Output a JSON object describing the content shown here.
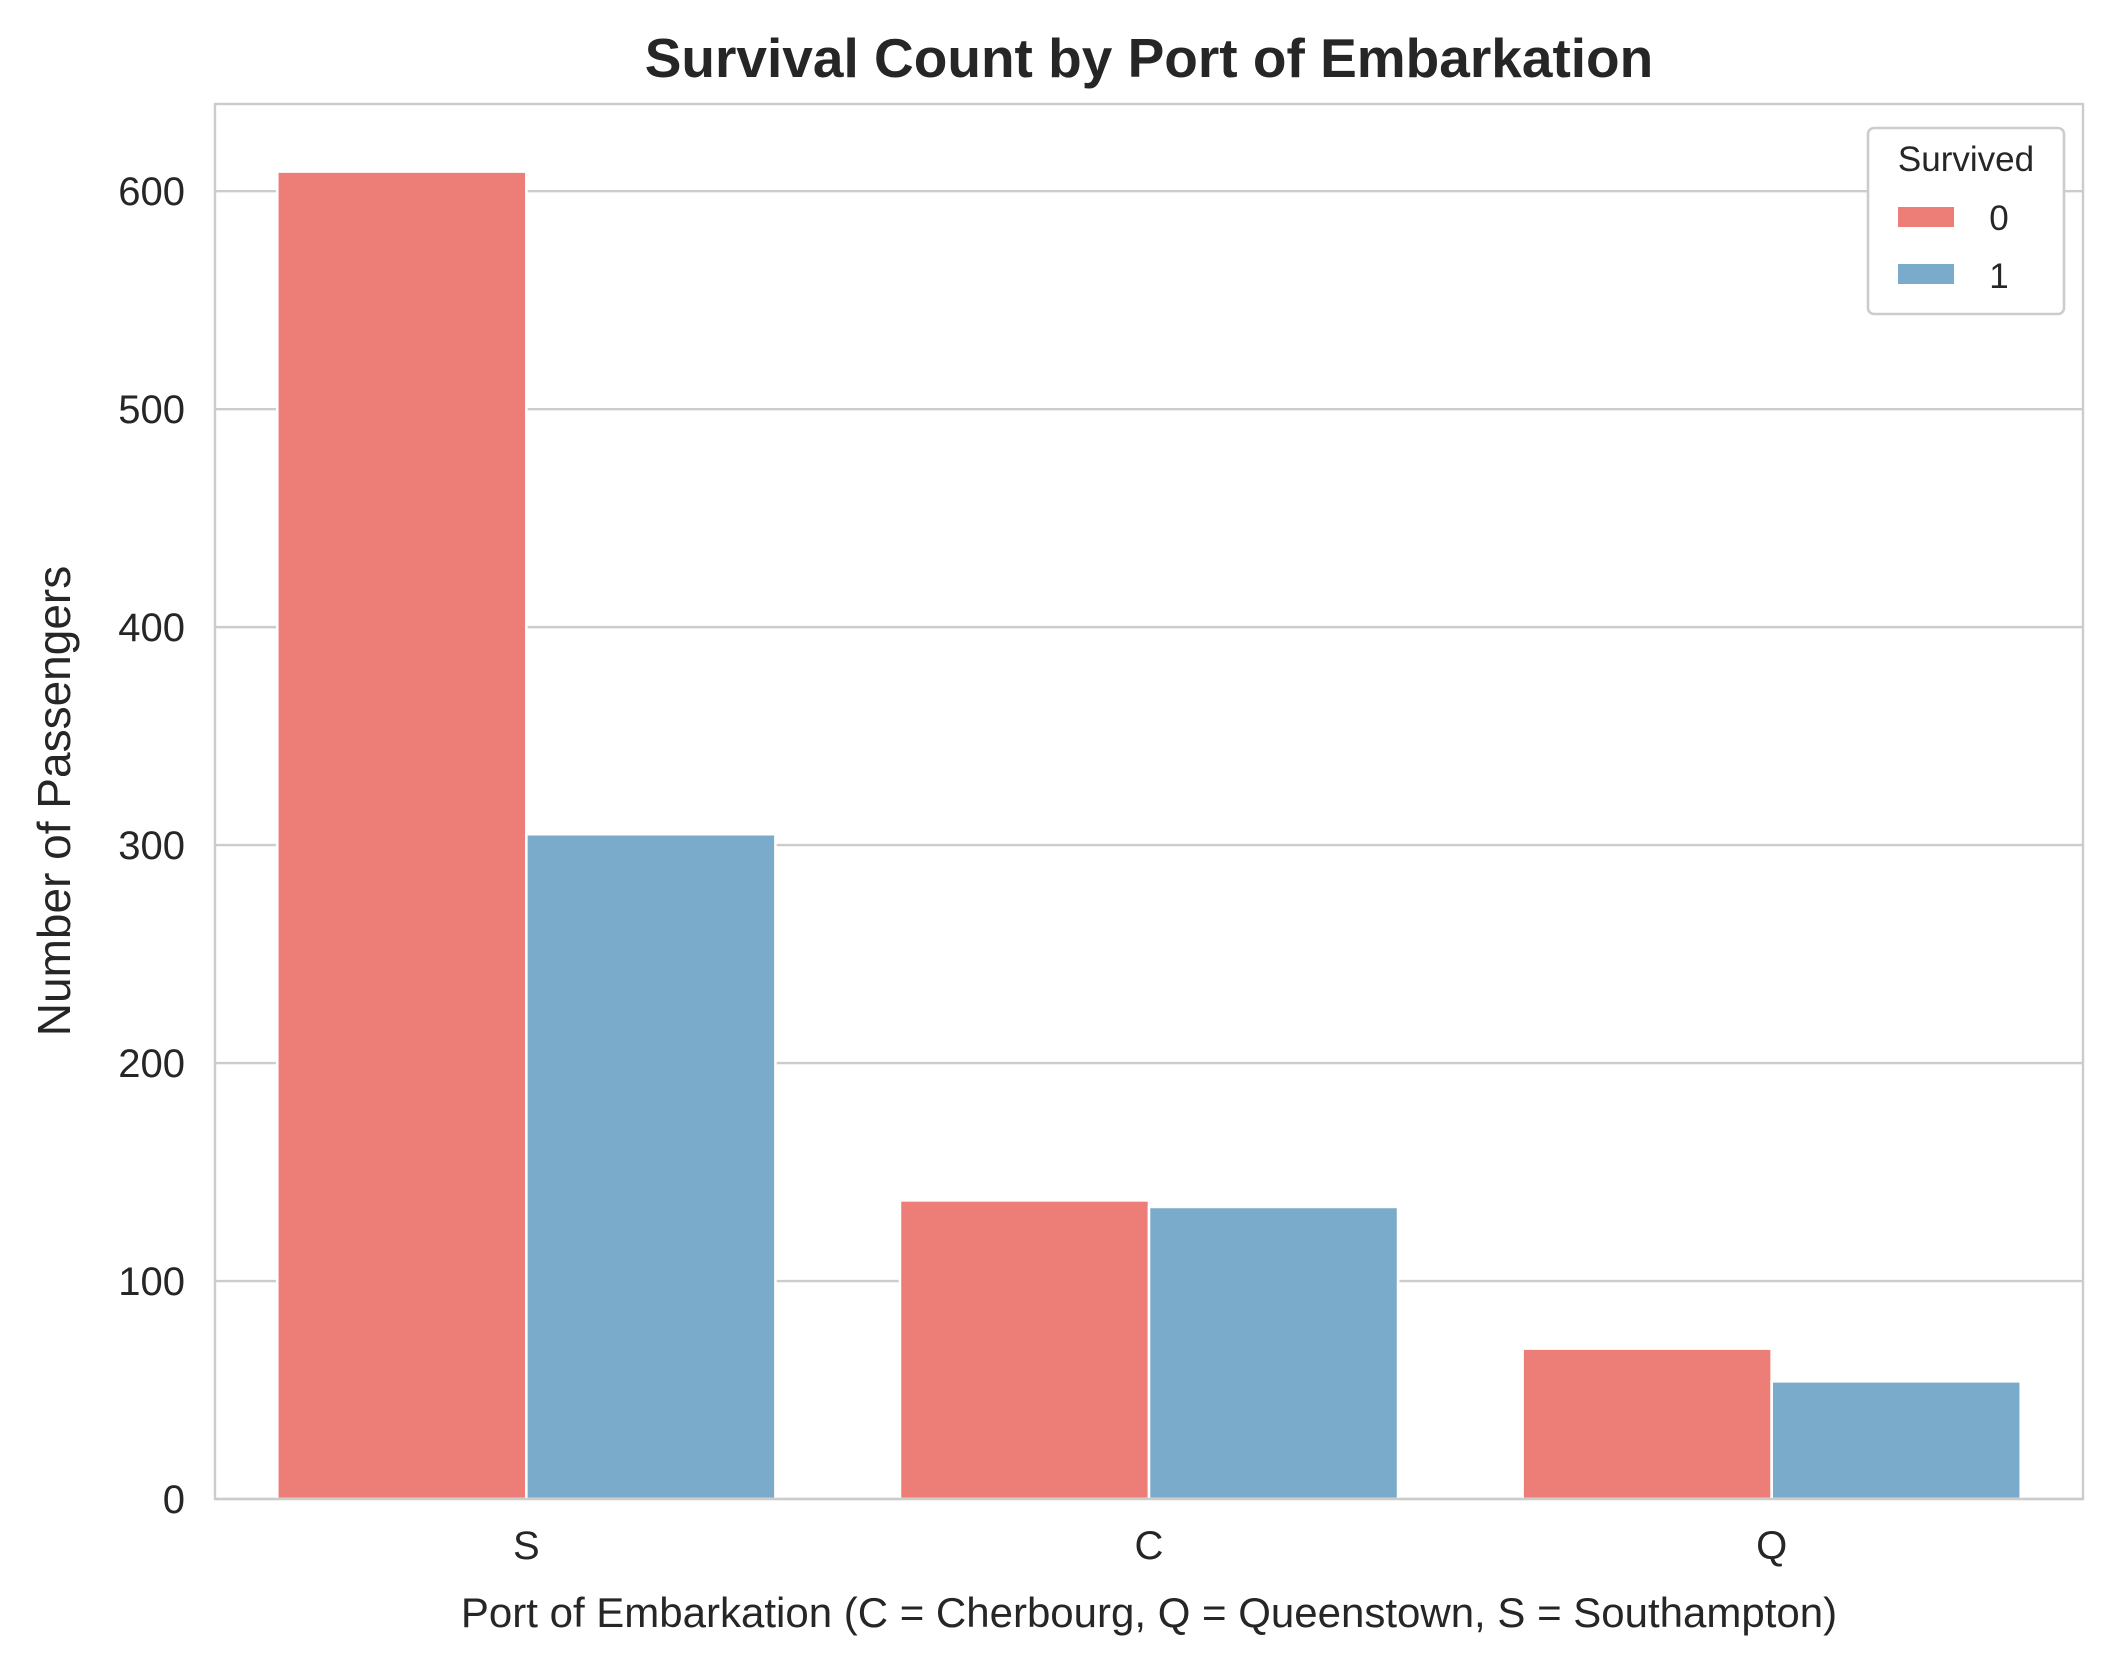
{
  "chart_data": {
    "type": "bar",
    "title": "Survival Count by Port of Embarkation",
    "xlabel": "Port of Embarkation (C = Cherbourg, Q = Queenstown, S = Southampton)",
    "ylabel": "Number of Passengers",
    "categories": [
      "S",
      "C",
      "Q"
    ],
    "series": [
      {
        "name": "0",
        "color": "#ec7e77",
        "values": [
          609,
          137,
          69
        ]
      },
      {
        "name": "1",
        "color": "#7aabcb",
        "values": [
          305,
          134,
          54
        ]
      }
    ],
    "ylim": [
      0,
      640
    ],
    "yticks": [
      0,
      100,
      200,
      300,
      400,
      500,
      600
    ],
    "grid": true,
    "legend": {
      "title": "Survived",
      "placement": "top-right"
    }
  }
}
